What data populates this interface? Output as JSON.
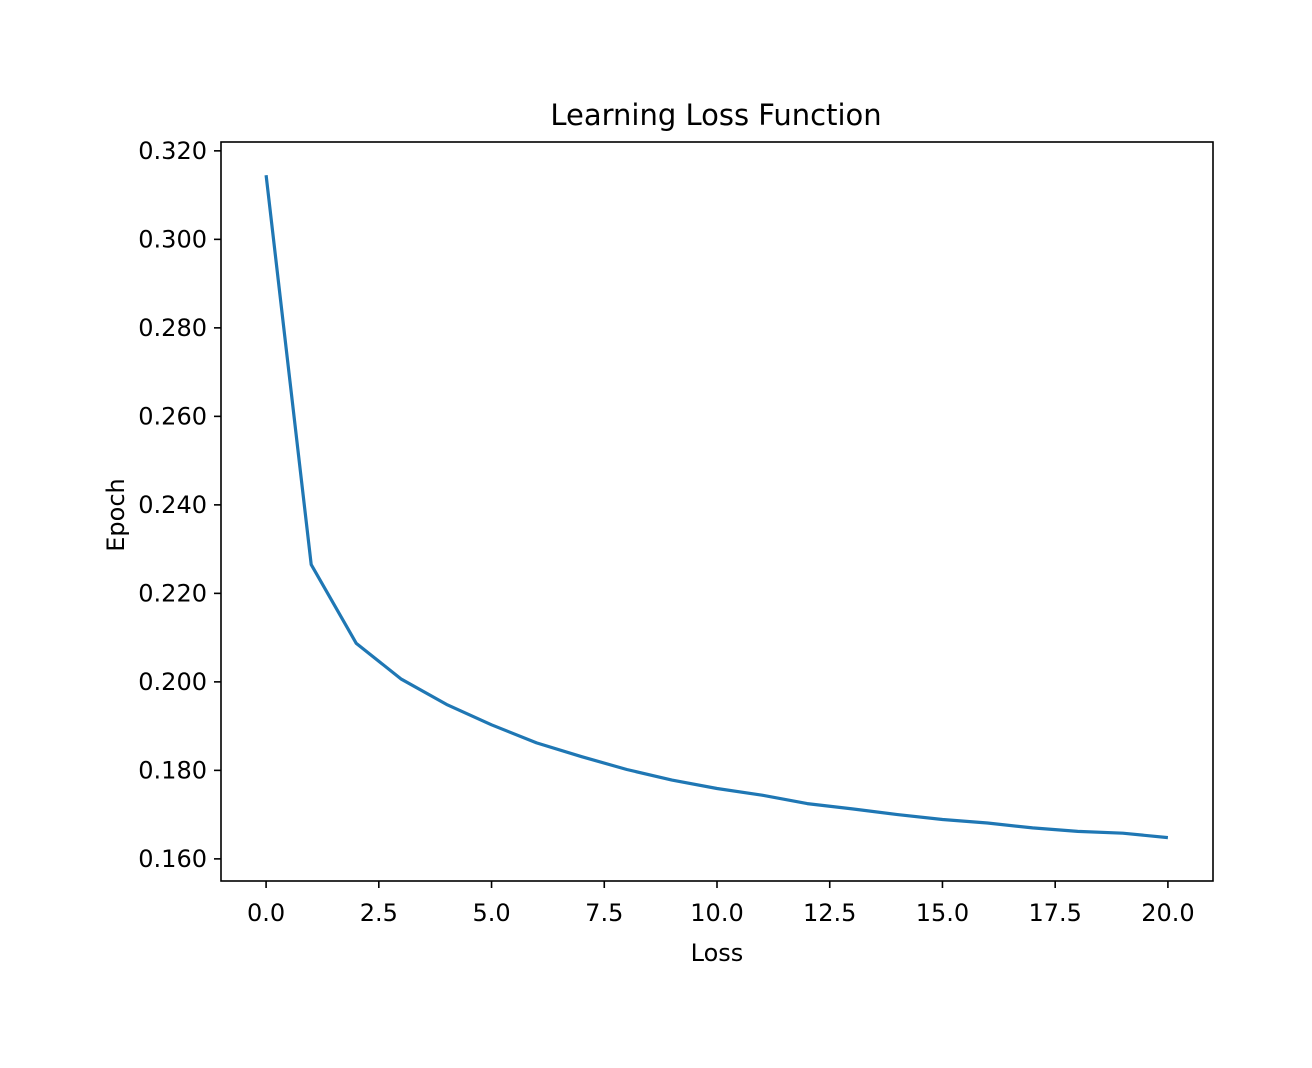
{
  "chart_data": {
    "type": "line",
    "title": "Learning Loss Function",
    "xlabel": "Loss",
    "ylabel": "Epoch",
    "xlim": [
      -1.0,
      21.0
    ],
    "ylim": [
      0.155,
      0.322
    ],
    "xticks": [
      0.0,
      2.5,
      5.0,
      7.5,
      10.0,
      12.5,
      15.0,
      17.5,
      20.0
    ],
    "xtick_labels": [
      "0.0",
      "2.5",
      "5.0",
      "7.5",
      "10.0",
      "12.5",
      "15.0",
      "17.5",
      "20.0"
    ],
    "yticks": [
      0.16,
      0.18,
      0.2,
      0.22,
      0.24,
      0.26,
      0.28,
      0.3,
      0.32
    ],
    "ytick_labels": [
      "0.160",
      "0.180",
      "0.200",
      "0.220",
      "0.240",
      "0.260",
      "0.280",
      "0.300",
      "0.320"
    ],
    "grid": false,
    "series": [
      {
        "color": "#1f77b4",
        "x": [
          0,
          1,
          2,
          3,
          4,
          5,
          6,
          7,
          8,
          9,
          10,
          11,
          12,
          13,
          14,
          15,
          16,
          17,
          18,
          19,
          20
        ],
        "y": [
          0.3145,
          0.2265,
          0.2087,
          0.2006,
          0.1949,
          0.1903,
          0.1862,
          0.1831,
          0.1802,
          0.1778,
          0.1759,
          0.1744,
          0.1725,
          0.1713,
          0.17,
          0.1689,
          0.1681,
          0.167,
          0.1662,
          0.1658,
          0.1648
        ]
      }
    ]
  }
}
